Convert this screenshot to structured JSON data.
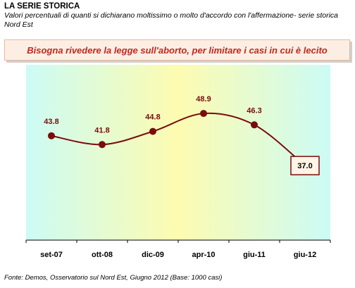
{
  "header": {
    "title": "LA SERIE STORICA",
    "subtitle": "Valori percentuali di quanti si dichiarano moltissimo o molto d'accordo con l'affermazione- serie storica Nord Est"
  },
  "question": "Bisogna rivedere la legge sull'aborto, per limitare i casi in cui è lecito",
  "source": "Fonte: Demos, Osservatorio sul Nord Est, Giugno 2012 (Base: 1000 casi)",
  "colors": {
    "line": "#7a0c0c",
    "marker": "#7a0c0c",
    "question_text": "#c0281e",
    "gradient_edge": "#ccfbf5",
    "gradient_center": "#fdfbb0"
  },
  "chart_data": {
    "type": "line",
    "categories": [
      "set-07",
      "ott-08",
      "dic-09",
      "apr-10",
      "giu-11",
      "giu-12"
    ],
    "series": [
      {
        "values": [
          43.8,
          41.8,
          44.8,
          48.9,
          46.3,
          37.0
        ],
        "labels": [
          "43.8",
          "41.8",
          "44.8",
          "48.9",
          "46.3",
          "37.0"
        ]
      }
    ],
    "highlighted_point": "giu-12",
    "xlabel": "",
    "ylabel": "",
    "ylim": [
      20,
      60
    ],
    "grid": false,
    "legend": "none"
  }
}
